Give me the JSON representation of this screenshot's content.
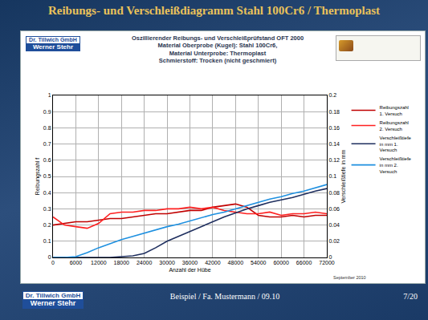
{
  "slide": {
    "title": "Reibungs- und Verschleißdiagramm Stahl 100Cr6 / Thermoplast",
    "logo": [
      "Dr. Tillwich GmbH",
      "Werner Stehr"
    ],
    "footer": "Beispiel / Fa. Mustermann / 09.10",
    "page": "7/20"
  },
  "chart_data": {
    "type": "line",
    "title": "Oszillierender Reibungs- und Verschleißprüfstand OFT 2000",
    "subtitle": [
      "Material Oberprobe (Kugel): Stahl 100Cr6,",
      "Material Unterprobe: Thermoplast",
      "Schmierstoff: Trocken (nicht geschmiert)"
    ],
    "x_label": "Anzahl der Hübe",
    "y_label": "Reibungszahl f",
    "y2_label": "Verschleißtiefe in mm",
    "annotations": [
      "September 2010"
    ],
    "x": [
      0,
      3000,
      6000,
      9000,
      12000,
      15000,
      18000,
      21000,
      24000,
      27000,
      30000,
      33000,
      36000,
      39000,
      42000,
      45000,
      48000,
      51000,
      54000,
      57000,
      60000,
      63000,
      66000,
      69000,
      72000
    ],
    "series": [
      {
        "name": "Reibungszahl 1. Versuch",
        "color": "#c00000",
        "values": [
          0.2,
          0.21,
          0.22,
          0.22,
          0.23,
          0.24,
          0.24,
          0.25,
          0.26,
          0.27,
          0.27,
          0.28,
          0.29,
          0.29,
          0.31,
          0.32,
          0.33,
          0.31,
          0.26,
          0.25,
          0.25,
          0.26,
          0.25,
          0.26,
          0.26
        ]
      },
      {
        "name": "Reibungszahl 2. Versuch",
        "color": "#ff2020",
        "values": [
          0.25,
          0.2,
          0.19,
          0.18,
          0.21,
          0.27,
          0.28,
          0.28,
          0.29,
          0.29,
          0.3,
          0.3,
          0.31,
          0.3,
          0.31,
          0.29,
          0.28,
          0.27,
          0.27,
          0.28,
          0.26,
          0.27,
          0.27,
          0.28,
          0.27
        ]
      },
      {
        "name": "Verschleißtiefe in mm 1. Versuch",
        "color": "#1f2f5f",
        "axis": "y2",
        "values": [
          0,
          0,
          0,
          0,
          0,
          0,
          0.001,
          0.002,
          0.005,
          0.012,
          0.02,
          0.026,
          0.032,
          0.038,
          0.044,
          0.05,
          0.055,
          0.06,
          0.064,
          0.068,
          0.071,
          0.074,
          0.078,
          0.082,
          0.085
        ]
      },
      {
        "name": "Verschleißtiefe in mm 2. Versuch",
        "color": "#1e90e0",
        "axis": "y2",
        "values": [
          0,
          0,
          0.001,
          0.006,
          0.012,
          0.017,
          0.022,
          0.026,
          0.03,
          0.034,
          0.038,
          0.041,
          0.045,
          0.049,
          0.053,
          0.056,
          0.06,
          0.064,
          0.068,
          0.072,
          0.075,
          0.079,
          0.082,
          0.086,
          0.09
        ]
      }
    ],
    "xlim": [
      0,
      72000
    ],
    "xticks": [
      0,
      6000,
      12000,
      18000,
      24000,
      30000,
      36000,
      42000,
      48000,
      54000,
      60000,
      66000,
      72000
    ],
    "ylim": [
      0,
      1
    ],
    "yticks": [
      0,
      0.1,
      0.2,
      0.3,
      0.4,
      0.5,
      0.6,
      0.7,
      0.8,
      0.9,
      1
    ],
    "y2lim": [
      0,
      0.2
    ],
    "y2ticks": [
      0,
      0.02,
      0.04,
      0.06,
      0.08,
      0.1,
      0.12,
      0.14,
      0.16,
      0.18,
      0.2
    ],
    "grid": true,
    "legend": "right"
  }
}
